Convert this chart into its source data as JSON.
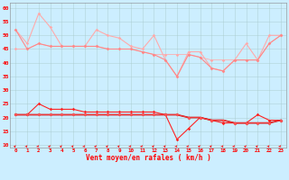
{
  "x": [
    0,
    1,
    2,
    3,
    4,
    5,
    6,
    7,
    8,
    9,
    10,
    11,
    12,
    13,
    14,
    15,
    16,
    17,
    18,
    19,
    20,
    21,
    22,
    23
  ],
  "rafales1": [
    52,
    47,
    58,
    53,
    46,
    46,
    46,
    52,
    50,
    49,
    46,
    45,
    50,
    41,
    35,
    44,
    44,
    38,
    37,
    41,
    47,
    41,
    50,
    50
  ],
  "rafales2": [
    45,
    45,
    47,
    46,
    46,
    46,
    46,
    46,
    45,
    45,
    45,
    44,
    43,
    43,
    43,
    43,
    42,
    41,
    41,
    41,
    41,
    41,
    47,
    50
  ],
  "rafales3": [
    52,
    45,
    47,
    46,
    46,
    46,
    46,
    46,
    45,
    45,
    45,
    44,
    43,
    41,
    35,
    43,
    42,
    38,
    37,
    41,
    41,
    41,
    47,
    50
  ],
  "vent1": [
    21,
    21,
    25,
    23,
    23,
    23,
    22,
    22,
    22,
    22,
    22,
    22,
    22,
    21,
    12,
    16,
    20,
    19,
    18,
    18,
    18,
    21,
    19,
    19
  ],
  "vent2": [
    21,
    21,
    21,
    21,
    21,
    21,
    21,
    21,
    21,
    21,
    21,
    21,
    21,
    21,
    21,
    20,
    20,
    19,
    19,
    18,
    18,
    18,
    18,
    19
  ],
  "vent3": [
    21,
    21,
    21,
    21,
    21,
    21,
    21,
    21,
    21,
    21,
    21,
    21,
    21,
    21,
    21,
    20,
    20,
    19,
    19,
    18,
    18,
    18,
    18,
    19
  ],
  "bg_color": "#cceeff",
  "grid_color": "#aacccc",
  "color_light_pink": "#ffaaaa",
  "color_pink": "#ff8888",
  "color_dark_red": "#cc0000",
  "color_red": "#ff2222",
  "color_medium_red": "#ff5555",
  "xlabel": "Vent moyen/en rafales ( km/h )",
  "yticks": [
    10,
    15,
    20,
    25,
    30,
    35,
    40,
    45,
    50,
    55,
    60
  ],
  "ylim": [
    9,
    62
  ],
  "xlim": [
    -0.5,
    23.5
  ]
}
